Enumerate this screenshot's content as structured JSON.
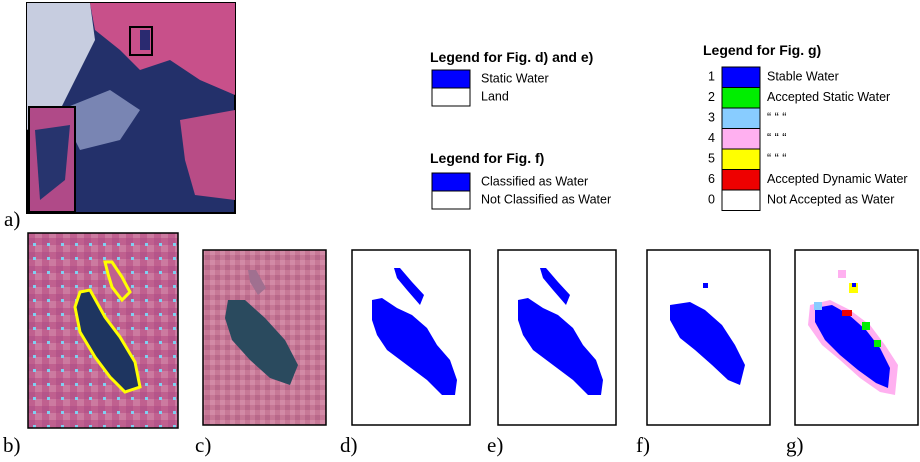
{
  "panel_labels": [
    "a)",
    "b)",
    "c)",
    "d)",
    "e)",
    "f)",
    "g)"
  ],
  "legend_de": {
    "title": "Legend  for Fig. d) and e)",
    "items": [
      {
        "label": "Static Water",
        "color": "#0000ff"
      },
      {
        "label": "Land",
        "color": "#ffffff"
      }
    ]
  },
  "legend_f": {
    "title": "Legend  for Fig. f)",
    "items": [
      {
        "label": "Classified as Water",
        "color": "#0000ff"
      },
      {
        "label": "Not Classified as Water",
        "color": "#ffffff"
      }
    ]
  },
  "legend_g": {
    "title": "Legend  for Fig. g)",
    "items": [
      {
        "code": "1",
        "label": "Stable Water",
        "color": "#0000ff"
      },
      {
        "code": "2",
        "label": "Accepted Static Water",
        "color": "#00ee00"
      },
      {
        "code": "3",
        "label": "“          “          “",
        "color": "#88ccff"
      },
      {
        "code": "4",
        "label": "“          “          “",
        "color": "#ffb0f0"
      },
      {
        "code": "5",
        "label": "“          “          “",
        "color": "#ffff00"
      },
      {
        "code": "6",
        "label": "Accepted Dynamic Water",
        "color": "#ee0000"
      },
      {
        "code": "0",
        "label": "Not Accepted as Water",
        "color": "#ffffff"
      }
    ]
  }
}
